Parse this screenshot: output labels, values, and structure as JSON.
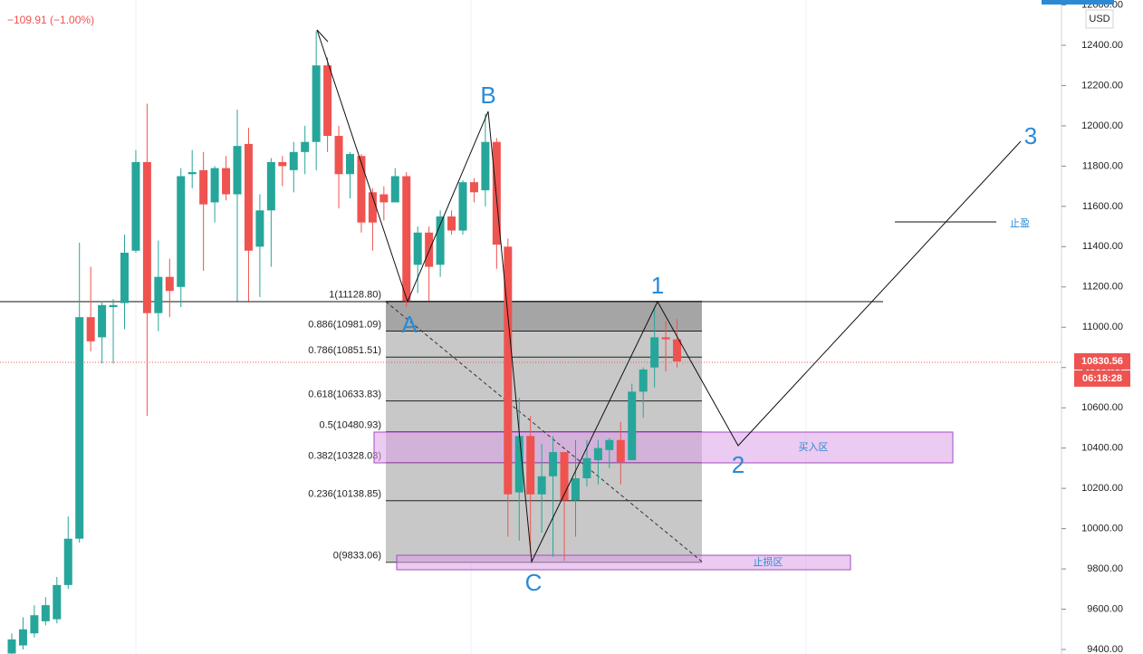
{
  "chart_data": {
    "type": "candlestick",
    "header": "−109.91 (−1.00%)",
    "currency": "USD",
    "categories": [
      null,
      null,
      null,
      null,
      null,
      null,
      null,
      null,
      null,
      null,
      null,
      null,
      null,
      null,
      null,
      null,
      null,
      null,
      null,
      null,
      null,
      null,
      null,
      null,
      null,
      null,
      null,
      null,
      null,
      null,
      null,
      null,
      null,
      null,
      null,
      null,
      null,
      null,
      null,
      null,
      null,
      null,
      null,
      null,
      null,
      null,
      null,
      null,
      null,
      null,
      null,
      null,
      null,
      null,
      null,
      null,
      null,
      null,
      null,
      null
    ],
    "open": [
      9380,
      9420,
      9480,
      9540,
      9550,
      9720,
      9950,
      11050,
      10950,
      11100,
      11120,
      11380,
      11820,
      11070,
      11250,
      11200,
      11760,
      11780,
      11620,
      11790,
      11660,
      11910,
      11400,
      11580,
      11820,
      11780,
      11870,
      11920,
      12300,
      11950,
      11760,
      11850,
      11670,
      11660,
      11620,
      11750,
      11310,
      11470,
      11310,
      11550,
      11480,
      11720,
      11680,
      11920,
      11400,
      10180,
      10460,
      10170,
      10260,
      10380,
      10140,
      10250,
      10340,
      10390,
      10440,
      10340,
      10680,
      10800,
      10950,
      10940
    ],
    "high": [
      9480,
      9560,
      9620,
      9660,
      9760,
      10060,
      11420,
      11300,
      11130,
      11140,
      11460,
      11880,
      12110,
      11430,
      11340,
      11790,
      11880,
      11870,
      11800,
      11850,
      12080,
      11990,
      11660,
      11840,
      11850,
      11920,
      12000,
      12470,
      12340,
      12000,
      11870,
      11860,
      11690,
      11700,
      11790,
      11770,
      11500,
      11500,
      11580,
      11580,
      11730,
      11740,
      12060,
      11940,
      11440,
      10650,
      10560,
      10420,
      10460,
      10380,
      10440,
      10440,
      10440,
      10450,
      10530,
      10720,
      10800,
      11100,
      11030,
      11040
    ],
    "low": [
      9350,
      9400,
      9460,
      9520,
      9530,
      9700,
      9930,
      10880,
      10820,
      10820,
      10990,
      11370,
      10560,
      10980,
      11050,
      11100,
      11690,
      11280,
      11520,
      11630,
      11130,
      11130,
      11150,
      11300,
      11700,
      11670,
      11760,
      11780,
      11870,
      11590,
      11640,
      11470,
      11380,
      11530,
      11620,
      11100,
      11170,
      11130,
      11250,
      11460,
      11460,
      11620,
      11600,
      11290,
      9960,
      9940,
      9880,
      9980,
      9860,
      9840,
      9960,
      10210,
      10220,
      10300,
      10220,
      10340,
      10550,
      10700,
      10780,
      10800
    ],
    "close": [
      9450,
      9500,
      9570,
      9620,
      9720,
      9950,
      11050,
      10930,
      11110,
      11110,
      11370,
      11820,
      11070,
      11250,
      11180,
      11750,
      11770,
      11610,
      11790,
      11660,
      11900,
      11380,
      11580,
      11820,
      11800,
      11870,
      11920,
      12300,
      11950,
      11760,
      11860,
      11520,
      11520,
      11620,
      11750,
      11130,
      11470,
      11300,
      11550,
      11480,
      11720,
      11670,
      11920,
      11410,
      10170,
      10460,
      10170,
      10260,
      10380,
      10140,
      10250,
      10350,
      10400,
      10440,
      10330,
      10680,
      10790,
      10950,
      10940,
      10830
    ],
    "up_color": "#26a69a",
    "down_color": "#ef5350",
    "ylim": [
      9400,
      12600
    ],
    "yticks": [
      {
        "value": 9400,
        "label": "9400.00"
      },
      {
        "value": 9600,
        "label": "9600.00"
      },
      {
        "value": 9800,
        "label": "9800.00"
      },
      {
        "value": 10000,
        "label": "10000.00"
      },
      {
        "value": 10200,
        "label": "10200.00"
      },
      {
        "value": 10400,
        "label": "10400.00"
      },
      {
        "value": 10600,
        "label": "10600.00"
      },
      {
        "value": 10800,
        "label": "10800.00"
      },
      {
        "value": 11000,
        "label": "11000.00"
      },
      {
        "value": 11200,
        "label": "11200.00"
      },
      {
        "value": 11400,
        "label": "11400.00"
      },
      {
        "value": 11600,
        "label": "11600.00"
      },
      {
        "value": 11800,
        "label": "11800.00"
      },
      {
        "value": 12000,
        "label": "12000.00"
      },
      {
        "value": 12200,
        "label": "12200.00"
      },
      {
        "value": 12400,
        "label": "12400.00"
      },
      {
        "value": 12600,
        "label": "12600.00"
      }
    ],
    "fib_levels": [
      {
        "value": 11128.8,
        "label": "1(11128.80)"
      },
      {
        "value": 10981.09,
        "label": "0.886(10981.09)"
      },
      {
        "value": 10851.51,
        "label": "0.786(10851.51)"
      },
      {
        "value": 10633.83,
        "label": "0.618(10633.83)"
      },
      {
        "value": 10480.93,
        "label": "0.5(10480.93)"
      },
      {
        "value": 10328.03,
        "label": "0.382(10328.03)"
      },
      {
        "value": 10138.85,
        "label": "0.236(10138.85)"
      },
      {
        "value": 9833.06,
        "label": "0(9833.06)"
      }
    ],
    "last_price": {
      "value": 10830.56,
      "label": "10830.56"
    },
    "countdown": "06:18:28",
    "wave_labels": [
      "A",
      "B",
      "C",
      "1",
      "2",
      "3"
    ],
    "zones": {
      "buy": "买入区",
      "stop_loss": "止损区",
      "take_profit": "止盈"
    }
  }
}
